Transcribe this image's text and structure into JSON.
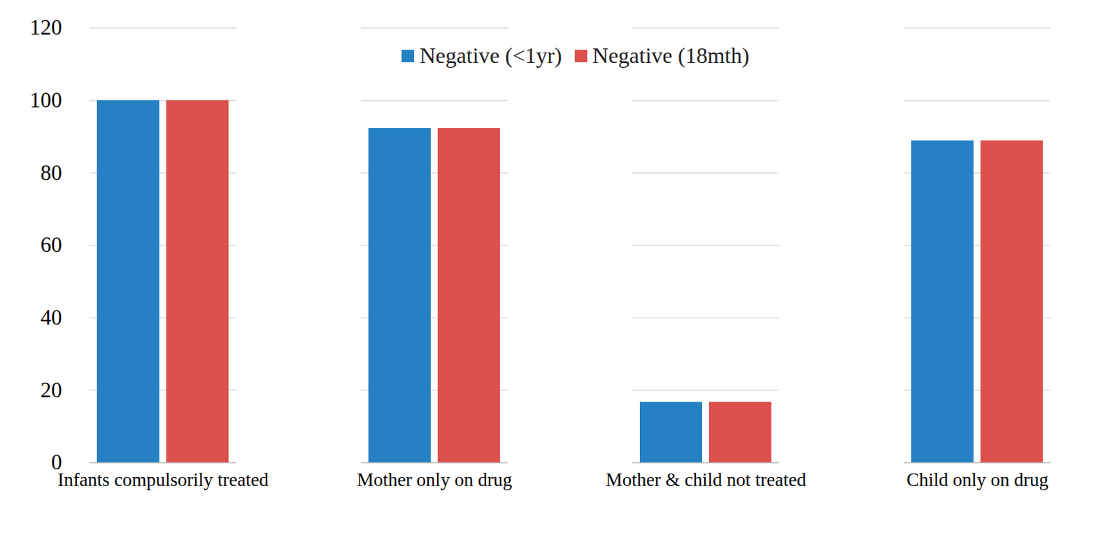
{
  "chart_data": {
    "type": "bar",
    "categories": [
      "Infants compulsorily treated",
      "Mother only on drug",
      "Mother & child not treated",
      "Child only on drug"
    ],
    "series": [
      {
        "name": "Negative (<1yr)",
        "color": "#2681c4",
        "values": [
          100,
          92.3,
          16.7,
          88.9
        ]
      },
      {
        "name": "Negative (18mth)",
        "color": "#dc514c",
        "values": [
          100,
          92.3,
          16.7,
          88.9
        ]
      }
    ],
    "ylim": [
      0,
      120
    ],
    "yticks": [
      0,
      20,
      40,
      60,
      80,
      100,
      120
    ],
    "grid": true,
    "legend": "top"
  }
}
